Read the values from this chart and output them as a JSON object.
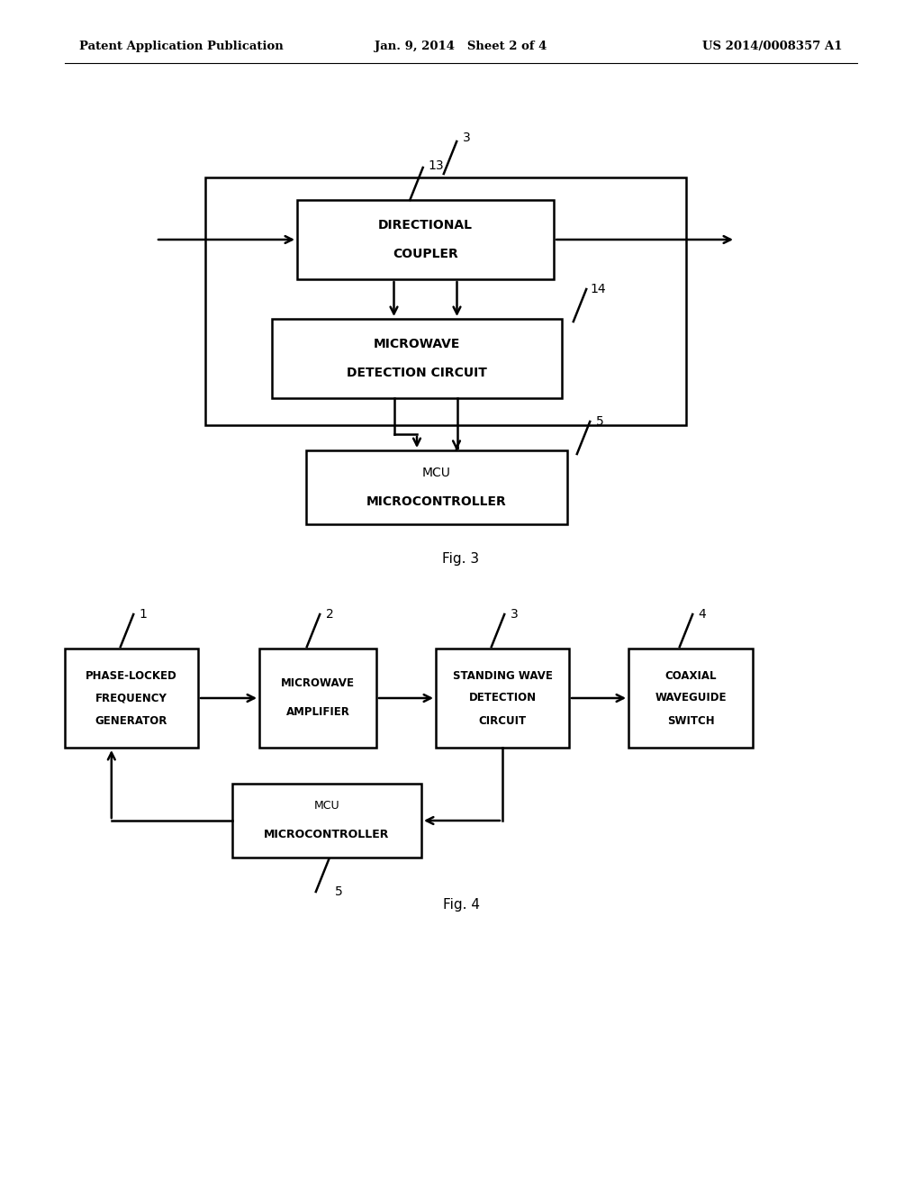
{
  "bg_color": "#ffffff",
  "header_left": "Patent Application Publication",
  "header_center": "Jan. 9, 2014   Sheet 2 of 4",
  "header_right": "US 2014/0008357 A1",
  "fig3_label": "Fig. 3",
  "fig4_label": "Fig. 4"
}
